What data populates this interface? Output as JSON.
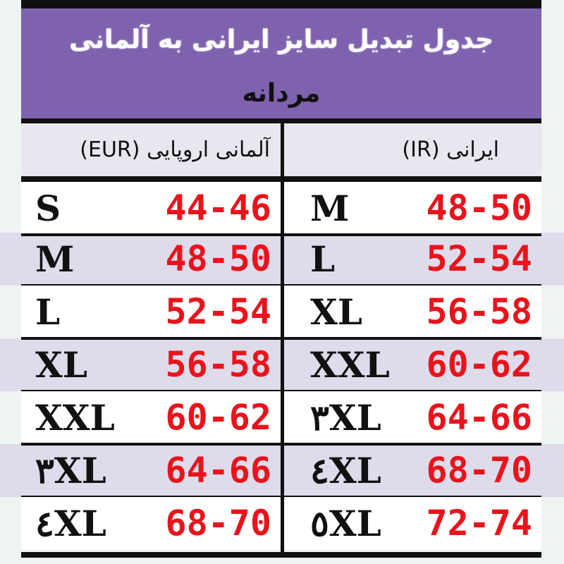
{
  "title": "جدول تبدیل سایز ایرانی به آلمانی",
  "subtitle": "مردانه",
  "columns": {
    "left_header": "آلمانی اروپایی (EUR)",
    "right_header": "ایرانی (IR)"
  },
  "colors": {
    "header_band": "#7e62ad",
    "number_red": "#e8141c",
    "stripe": "#dedbea"
  },
  "rows": [
    {
      "eur_size": "S",
      "eur_range": "44-46",
      "ir_size": "M",
      "ir_range": "48-50"
    },
    {
      "eur_size": "M",
      "eur_range": "48-50",
      "ir_size": "L",
      "ir_range": "52-54"
    },
    {
      "eur_size": "L",
      "eur_range": "52-54",
      "ir_size": "XL",
      "ir_range": "56-58"
    },
    {
      "eur_size": "XL",
      "eur_range": "56-58",
      "ir_size": "XXL",
      "ir_range": "60-62"
    },
    {
      "eur_size": "XXL",
      "eur_range": "60-62",
      "ir_size": "٣XL",
      "ir_range": "64-66"
    },
    {
      "eur_size": "٣XL",
      "eur_range": "64-66",
      "ir_size": "٤XL",
      "ir_range": "68-70"
    },
    {
      "eur_size": "٤XL",
      "eur_range": "68-70",
      "ir_size": "٥XL",
      "ir_range": "72-74"
    }
  ]
}
